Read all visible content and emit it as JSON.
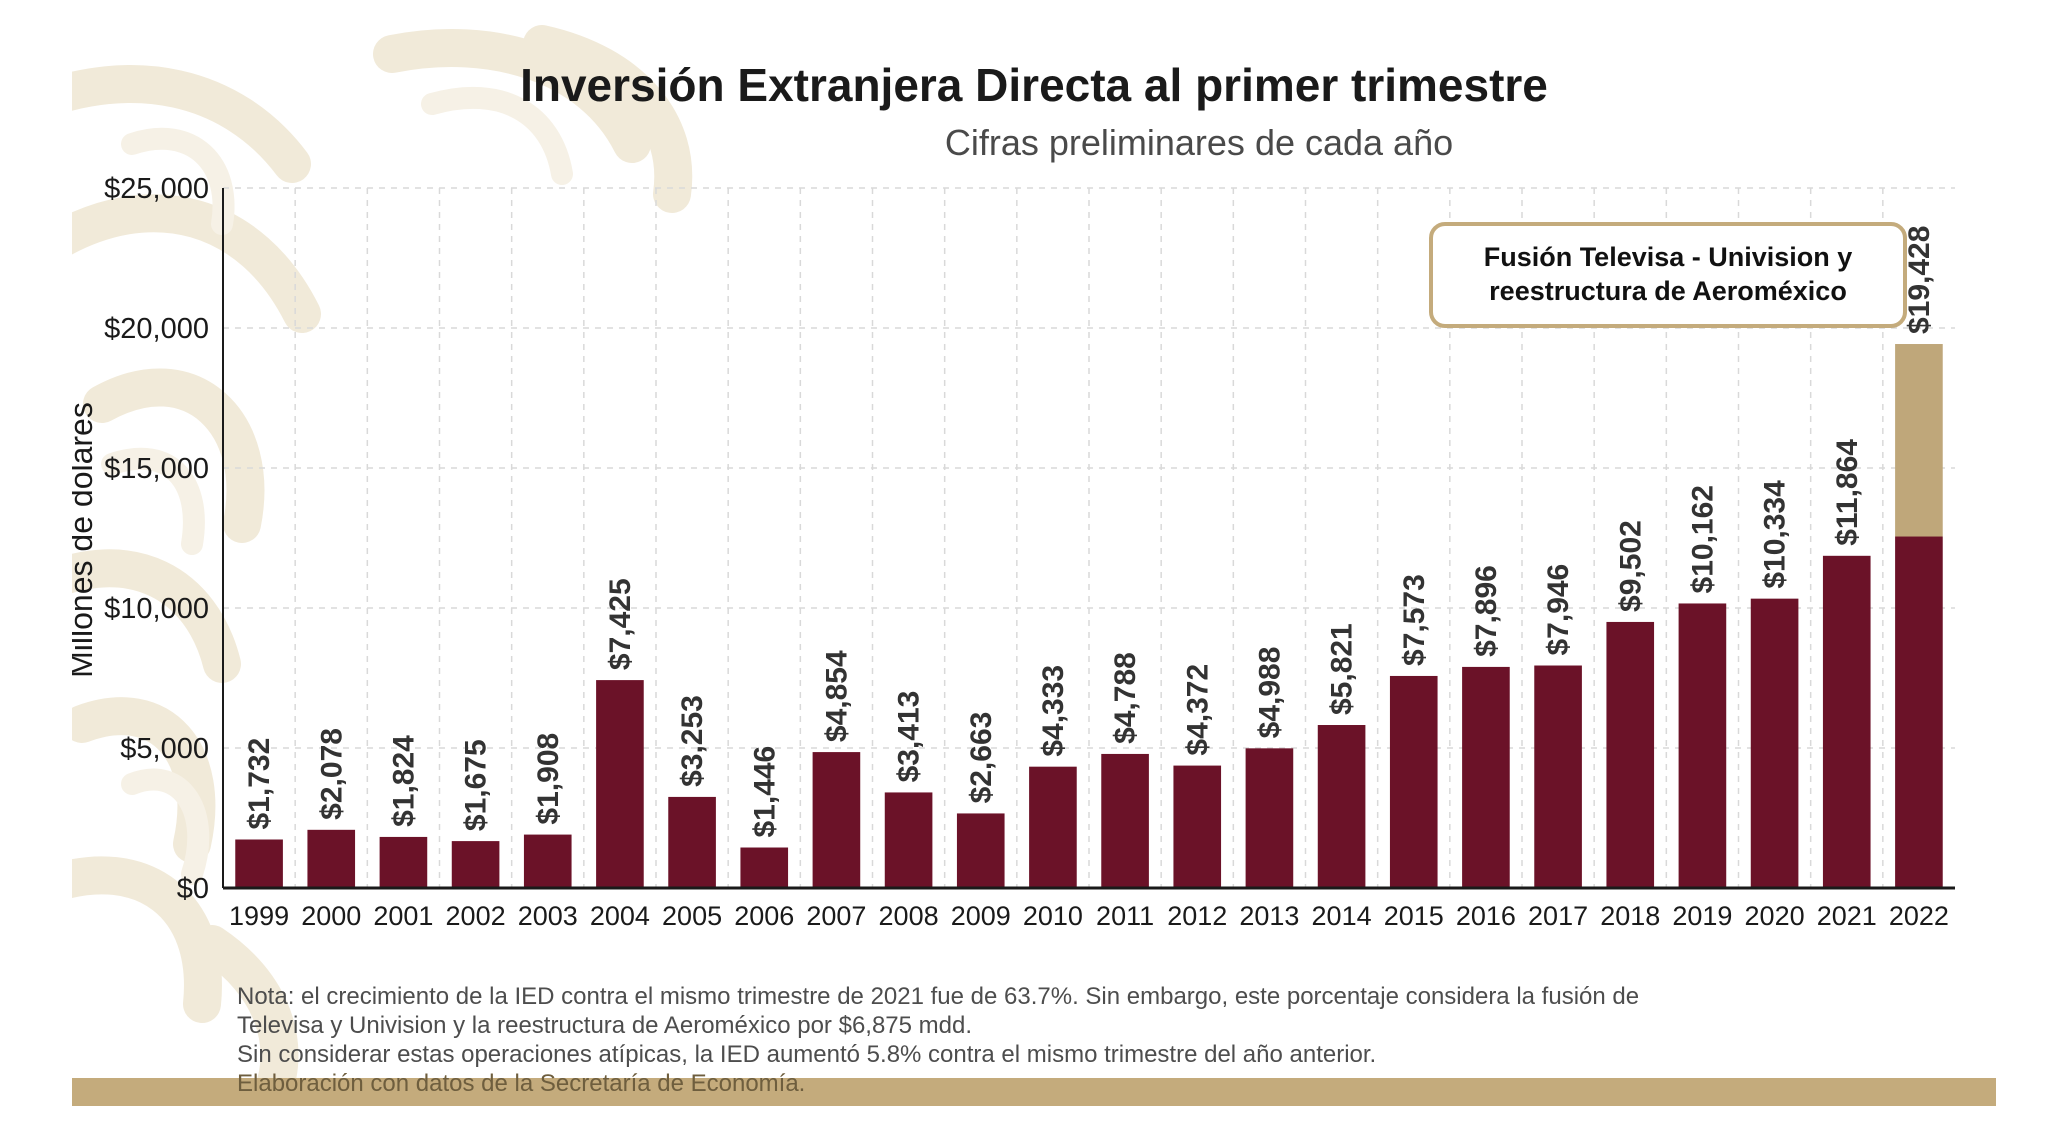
{
  "colors": {
    "bar": "#6b1228",
    "highlight": "#bfa77a",
    "callout_border": "#c4ab7c",
    "footer_bar": "#c4ab7c"
  },
  "chart_data": {
    "type": "bar",
    "title": "Inversión Extranjera Directa al primer trimestre",
    "subtitle": "Cifras preliminares de cada año",
    "ylabel": "Millones de dolares",
    "xlabel": "",
    "ylim": [
      0,
      25000
    ],
    "yticks": [
      "$0",
      "$5,000",
      "$10,000",
      "$15,000",
      "$20,000",
      "$25,000"
    ],
    "grid": true,
    "categories": [
      "1999",
      "2000",
      "2001",
      "2002",
      "2003",
      "2004",
      "2005",
      "2006",
      "2007",
      "2008",
      "2009",
      "2010",
      "2011",
      "2012",
      "2013",
      "2014",
      "2015",
      "2016",
      "2017",
      "2018",
      "2019",
      "2020",
      "2021",
      "2022"
    ],
    "values": [
      1732,
      2078,
      1824,
      1675,
      1908,
      7425,
      3253,
      1446,
      4854,
      3413,
      2663,
      4333,
      4788,
      4372,
      4988,
      5821,
      7573,
      7896,
      7946,
      9502,
      10162,
      10334,
      11864,
      19428
    ],
    "data_labels": [
      "$1,732",
      "$2,078",
      "$1,824",
      "$1,675",
      "$1,908",
      "$7,425",
      "$3,253",
      "$1,446",
      "$4,854",
      "$3,413",
      "$2,663",
      "$4,333",
      "$4,788",
      "$4,372",
      "$4,988",
      "$5,821",
      "$7,573",
      "$7,896",
      "$7,946",
      "$9,502",
      "$10,162",
      "$10,334",
      "$11,864",
      "$19,428"
    ],
    "highlight": {
      "category": "2022",
      "amount": 6875,
      "annotation": "Fusión Televisa - Univision y reestructura de Aeroméxico"
    }
  },
  "callout": {
    "line1": "Fusión Televisa - Univision y",
    "line2": "reestructura de Aeroméxico"
  },
  "notes": {
    "line1": "Nota: el crecimiento de la IED contra el mismo trimestre de 2021 fue de 63.7%. Sin embargo, este porcentaje considera la fusión de",
    "line2": "Televisa y Univision y la reestructura de Aeroméxico por $6,875 mdd.",
    "line3": "Sin considerar estas operaciones atípicas, la IED aumentó 5.8% contra el mismo trimestre del año anterior.",
    "line4": "Elaboración con datos de la Secretaría de Economía."
  }
}
